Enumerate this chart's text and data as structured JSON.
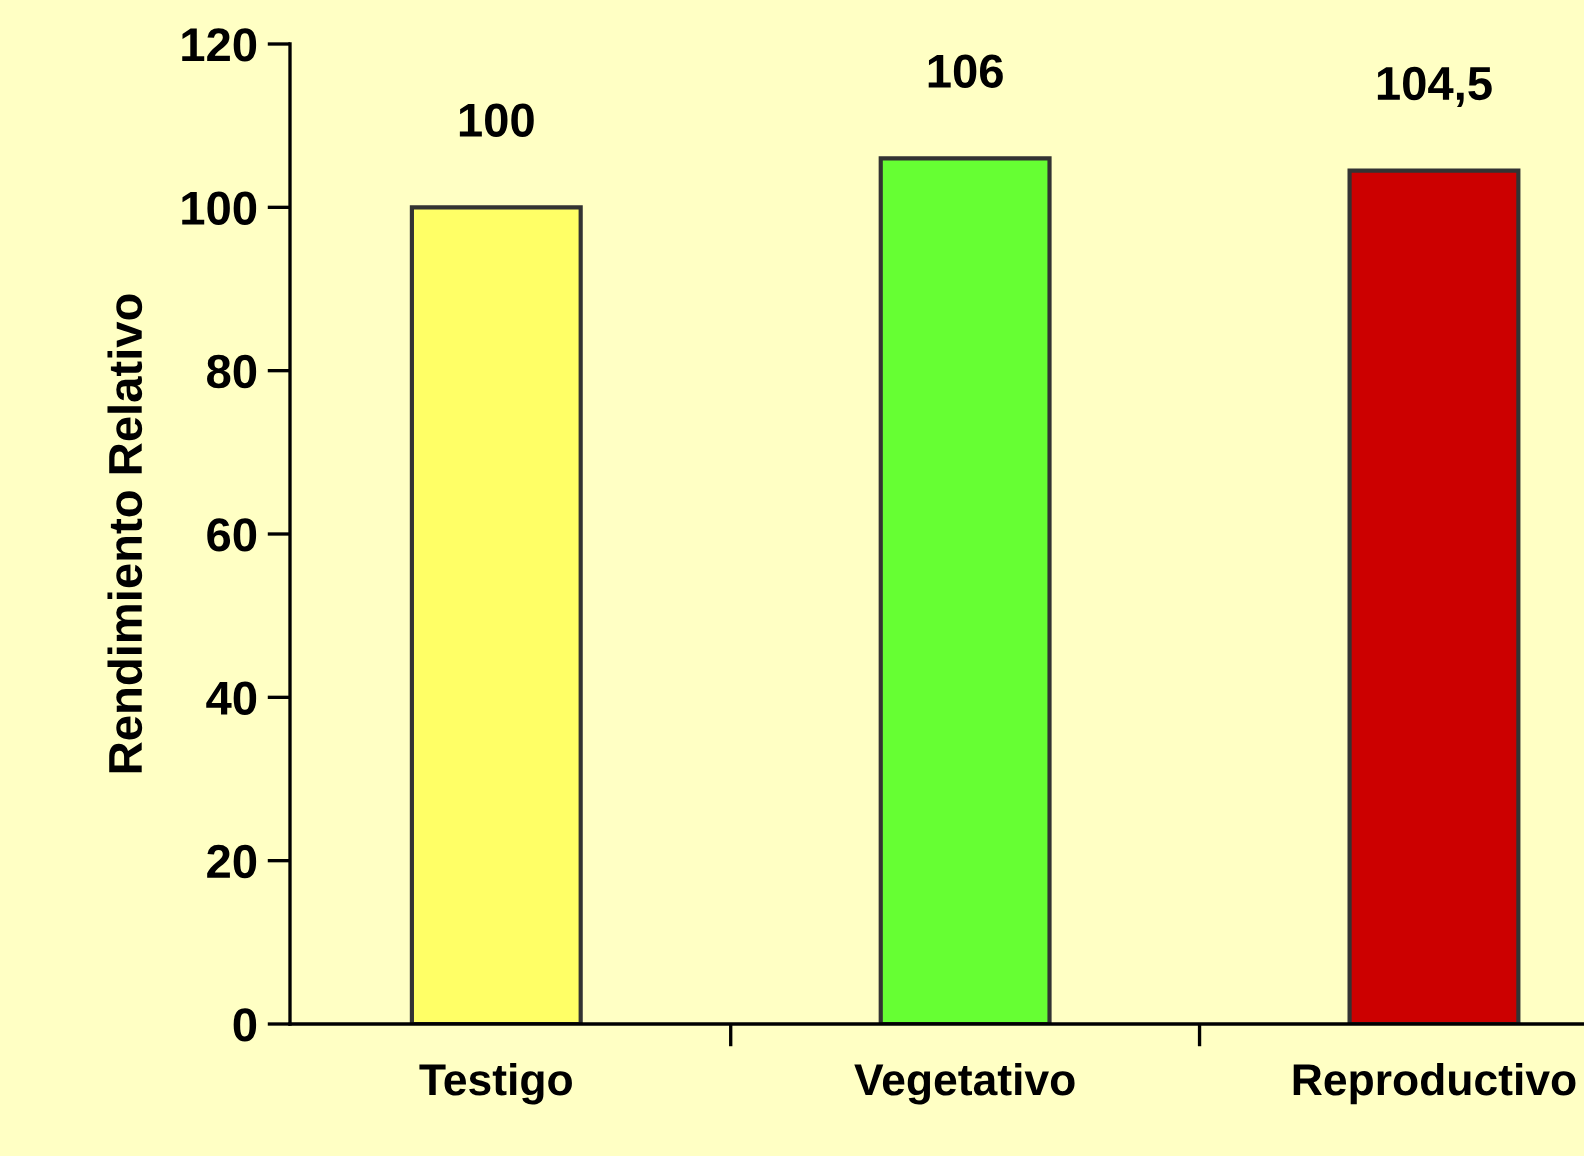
{
  "chart_data": {
    "type": "bar",
    "ylabel": "Rendimiento Relativo",
    "categories": [
      "Testigo",
      "Vegetativo",
      "Reproductivo"
    ],
    "values": [
      100,
      106,
      104.5
    ],
    "colors": [
      "#ffff66",
      "#66ff33",
      "#cc0000"
    ],
    "value_labels": [
      "100",
      "106",
      "104,5"
    ],
    "ylim": [
      0,
      120
    ],
    "yticks": [
      0,
      20,
      40,
      60,
      80,
      100,
      120
    ],
    "grid": false,
    "legend": false
  }
}
